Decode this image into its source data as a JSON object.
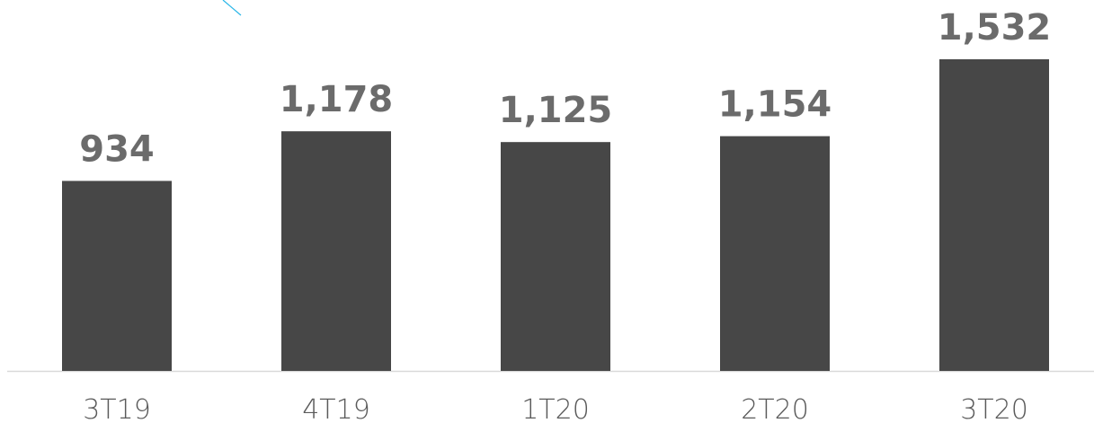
{
  "chart_data": {
    "type": "bar",
    "categories": [
      "3T19",
      "4T19",
      "1T20",
      "2T20",
      "3T20"
    ],
    "values": [
      934,
      1178,
      1125,
      1154,
      1532
    ],
    "value_labels": [
      "934",
      "1,178",
      "1,125",
      "1,154",
      "1,532"
    ],
    "color": "#474747"
  }
}
